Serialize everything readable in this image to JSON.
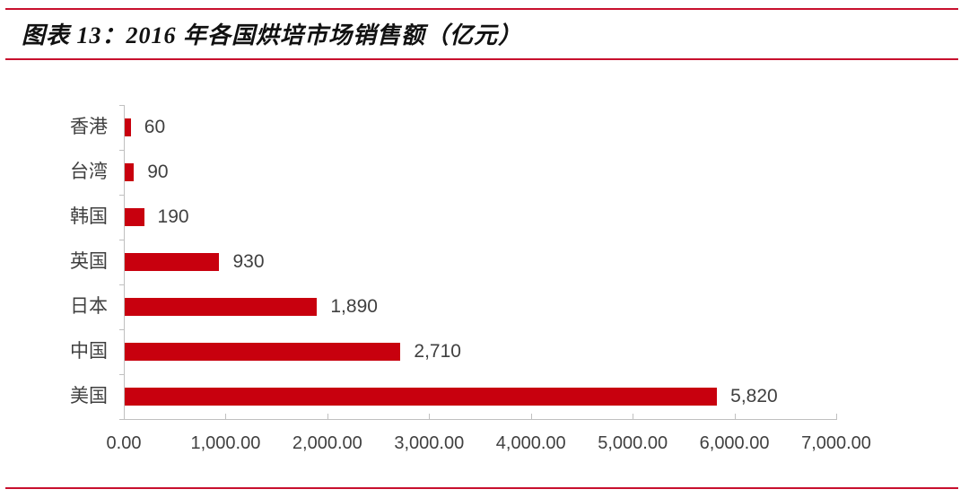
{
  "header": {
    "title": "图表 13：2016 年各国烘培市场销售额（亿元）"
  },
  "colors": {
    "bar": "#c8000e",
    "rule": "#c8102e",
    "text": "#404040",
    "axis": "#c0c0c0"
  },
  "chart_data": {
    "type": "bar",
    "orientation": "horizontal",
    "title": "2016 年各国烘培市场销售额（亿元）",
    "xlabel": "",
    "ylabel": "",
    "categories": [
      "香港",
      "台湾",
      "韩国",
      "英国",
      "日本",
      "中国",
      "美国"
    ],
    "values": [
      60,
      90,
      190,
      930,
      1890,
      2710,
      5820
    ],
    "value_labels": [
      "60",
      "90",
      "190",
      "930",
      "1,890",
      "2,710",
      "5,820"
    ],
    "xlim": [
      0,
      7000
    ],
    "x_ticks": [
      0,
      1000,
      2000,
      3000,
      4000,
      5000,
      6000,
      7000
    ],
    "x_tick_labels": [
      "0.00",
      "1,000.00",
      "2,000.00",
      "3,000.00",
      "4,000.00",
      "5,000.00",
      "6,000.00",
      "7,000.00"
    ],
    "grid": false,
    "legend": null
  }
}
